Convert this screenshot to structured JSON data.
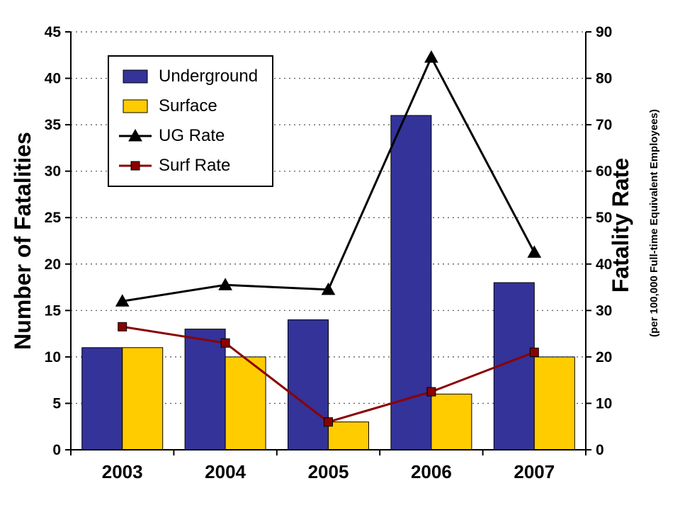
{
  "chart_data": {
    "type": "combo-bar-line",
    "title": "",
    "categories": [
      "2003",
      "2004",
      "2005",
      "2006",
      "2007"
    ],
    "series": [
      {
        "name": "Underground",
        "type": "bar",
        "axis": "left",
        "color": "#333399",
        "values": [
          11,
          13,
          14,
          36,
          18
        ]
      },
      {
        "name": "Surface",
        "type": "bar",
        "axis": "left",
        "color": "#FFCC00",
        "values": [
          11,
          10,
          3,
          6,
          10
        ]
      },
      {
        "name": "UG Rate",
        "type": "line",
        "axis": "right",
        "color": "#000000",
        "marker": "triangle",
        "values": [
          32,
          35.5,
          34.5,
          84.5,
          42.5
        ]
      },
      {
        "name": "Surf Rate",
        "type": "line",
        "axis": "right",
        "color": "#8B0000",
        "marker": "square",
        "values": [
          26.5,
          23,
          6,
          12.5,
          21
        ]
      }
    ],
    "left_axis": {
      "label": "Number of Fatalities",
      "min": 0,
      "max": 45,
      "step": 5,
      "ticks": [
        0,
        5,
        10,
        15,
        20,
        25,
        30,
        35,
        40,
        45
      ]
    },
    "right_axis": {
      "label": "Fatality Rate",
      "sublabel": "(per 100,000 Full-time Equivalent Employees)",
      "min": 0,
      "max": 90,
      "step": 10,
      "ticks": [
        0,
        10,
        20,
        30,
        40,
        50,
        60,
        70,
        80,
        90
      ]
    },
    "legend_position": "top-left",
    "grid": "horizontal-dotted",
    "grid_color": "#4d4d4d",
    "frame_color": "#000000"
  }
}
